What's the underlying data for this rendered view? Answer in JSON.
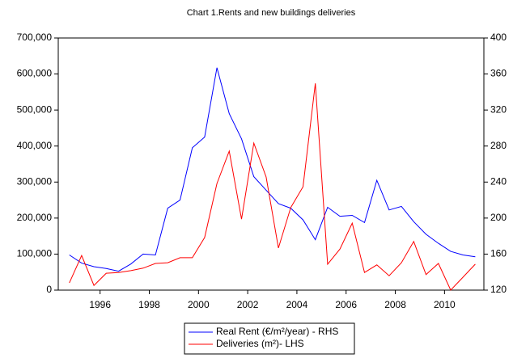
{
  "chart_data": {
    "type": "line",
    "title": "Chart 1.Rents and new buildings deliveries",
    "x": [
      1994.75,
      1995.25,
      1995.75,
      1996.25,
      1996.75,
      1997.25,
      1997.75,
      1998.25,
      1998.75,
      1999.25,
      1999.75,
      2000.25,
      2000.75,
      2001.25,
      2001.75,
      2002.25,
      2002.75,
      2003.25,
      2003.75,
      2004.25,
      2004.75,
      2005.25,
      2005.75,
      2006.25,
      2006.75,
      2007.25,
      2007.75,
      2008.25,
      2008.75,
      2009.25,
      2009.75,
      2010.25,
      2010.75,
      2011.25
    ],
    "series": [
      {
        "name": "Real Rent (€/m²/year) - RHS",
        "color": "#0000ff",
        "axis": "y2",
        "values": [
          159,
          150,
          146,
          144,
          141,
          149,
          160,
          159,
          211,
          220,
          278,
          290,
          367,
          316,
          288,
          246,
          231,
          216,
          211,
          198,
          176,
          212,
          202,
          203,
          195,
          242,
          209,
          213,
          196,
          182,
          172,
          163,
          159,
          157
        ]
      },
      {
        "name": "Deliveries (m²)- LHS",
        "color": "#ff0000",
        "values": [
          20000,
          96000,
          13000,
          47000,
          49000,
          54000,
          61000,
          74000,
          76000,
          90000,
          90000,
          146000,
          296000,
          386000,
          197000,
          408000,
          314000,
          117000,
          229000,
          287000,
          574000,
          72000,
          114000,
          186000,
          49000,
          70000,
          40000,
          76000,
          135000,
          43000,
          74000,
          0,
          36000,
          72000
        ]
      }
    ],
    "xlim": [
      1994.3,
      2011.6
    ],
    "xticks": [
      1996,
      1998,
      2000,
      2002,
      2004,
      2006,
      2008,
      2010
    ],
    "ylim": [
      0,
      700000
    ],
    "yticks": [
      0,
      {
        "value": 100000,
        "label": "100,000"
      },
      {
        "value": 200000,
        "label": "200,000"
      },
      {
        "value": 300000,
        "label": "300,000"
      },
      {
        "value": 400000,
        "label": "400,000"
      },
      {
        "value": 500000,
        "label": "500,000"
      },
      {
        "value": 600000,
        "label": "600,000"
      },
      {
        "value": 700000,
        "label": "700,000"
      }
    ],
    "y2lim": [
      120,
      400
    ],
    "y2ticks": [
      120,
      160,
      200,
      240,
      280,
      320,
      360,
      400
    ],
    "grid": false,
    "legend": "bottom"
  }
}
